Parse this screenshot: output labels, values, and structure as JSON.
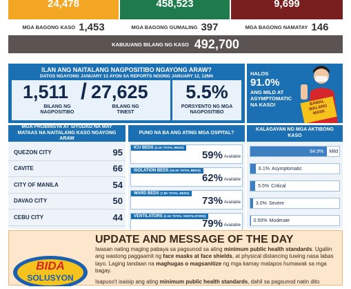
{
  "top_totals": [
    "24,478",
    "458,523",
    "9,699"
  ],
  "new": [
    {
      "label": "MGA BAGONG KASO",
      "value": "1,453"
    },
    {
      "label": "MGA BAGONG GUMALING",
      "value": "397"
    },
    {
      "label": "MGA BAGONG NAMATAY",
      "value": "146"
    }
  ],
  "total": {
    "label": "KABUUANG BILANG NG KASO",
    "value": "492,700"
  },
  "positivity": {
    "title": "ILAN ANG NAITALANG NAGPOSITIBO NGAYONG ARAW?",
    "subtitle": "DATOS NGAYONG JANUARY 13 AYON SA REPORTS NOONG JANUARY 12, 12NN",
    "positive": {
      "value": "1,511",
      "label": "BILANG NG NAGPOSITIBO"
    },
    "separator": "/",
    "tested": {
      "value": "27,625",
      "label": "BILANG NG TINEST"
    },
    "rate": {
      "value": "5.5%",
      "label": "PORSYENTO NG MGA NAGPOSITIBO"
    }
  },
  "mild": {
    "lines": [
      "HALOS",
      "91.0%",
      "ANG MILD AT",
      "ASYMPTOMATIC",
      "NA KASO!"
    ],
    "sign": [
      "BAWAL",
      "WALANG",
      "MASK"
    ]
  },
  "provinces": {
    "title": "MGA PROBINSYA AT SIYUDAD NA MAY MATAAS NA NAITALANG KASO NGAYONG ARAW",
    "rows": [
      [
        "QUEZON CITY",
        "95"
      ],
      [
        "CAVITE",
        "66"
      ],
      [
        "CITY OF MANILA",
        "54"
      ],
      [
        "DAVAO CITY",
        "50"
      ],
      [
        "CEBU CITY",
        "44"
      ]
    ]
  },
  "hospitals": {
    "title": "PUNO NA BA ANG ATING MGA OSPITAL?",
    "rows": [
      {
        "name": "ICU BEDS",
        "total": "(2.1K TOTAL BEDS)",
        "value": "59%",
        "note": "Available"
      },
      {
        "name": "ISOLATION BEDS",
        "total": "(16.1K TOTAL BEDS)",
        "value": "62%",
        "note": "Available"
      },
      {
        "name": "WARD BEDS",
        "total": "(7.8K TOTAL BEDS)",
        "value": "73%",
        "note": "Available"
      },
      {
        "name": "VENTILATORS",
        "total": "(2.1K TOTAL VENTILATORS)",
        "value": "79%",
        "note": "Available"
      }
    ]
  },
  "cases": {
    "title": "KALAGAYAN NG MGA AKTIBONG KASO",
    "rows": [
      {
        "value": 84.9,
        "label": "84.9%",
        "name": "Mild"
      },
      {
        "value": 6.1,
        "label": "6.1%",
        "name": "Asymptomatic"
      },
      {
        "value": 5.5,
        "label": "5.5%",
        "name": "Critical"
      },
      {
        "value": 3.0,
        "label": "3.0%",
        "name": "Severe"
      },
      {
        "value": 0.5,
        "label": "0.50%",
        "name": "Moderate"
      }
    ]
  },
  "update": {
    "title": "UPDATE AND MESSAGE OF THE DAY",
    "logo": [
      "BIDA",
      "SOLUSYON"
    ],
    "paragraphs": [
      [
        {
          "text": "Iwasan nating maging pabaya sa pagsunod sa ating ",
          "bold": false
        },
        {
          "text": "minimum public health standards",
          "bold": true
        },
        {
          "text": ". Ugaliin ang wastong paggaamit ng ",
          "bold": false
        },
        {
          "text": "face masks at face shields",
          "bold": true
        },
        {
          "text": ", at physical distancing tuwing nasa labas tayo. Laging tandaan na ",
          "bold": false
        },
        {
          "text": "maghugas o magsanitize",
          "bold": true
        },
        {
          "text": " ng mga kamay matapos humawak sa mga bagay.",
          "bold": false
        }
      ],
      [
        {
          "text": "Isapuso't isaisip ang ating ",
          "bold": false
        },
        {
          "text": "minimum public health standards",
          "bold": true
        },
        {
          "text": ", dahil sa pagsunod natin dito",
          "bold": false
        }
      ]
    ]
  }
}
